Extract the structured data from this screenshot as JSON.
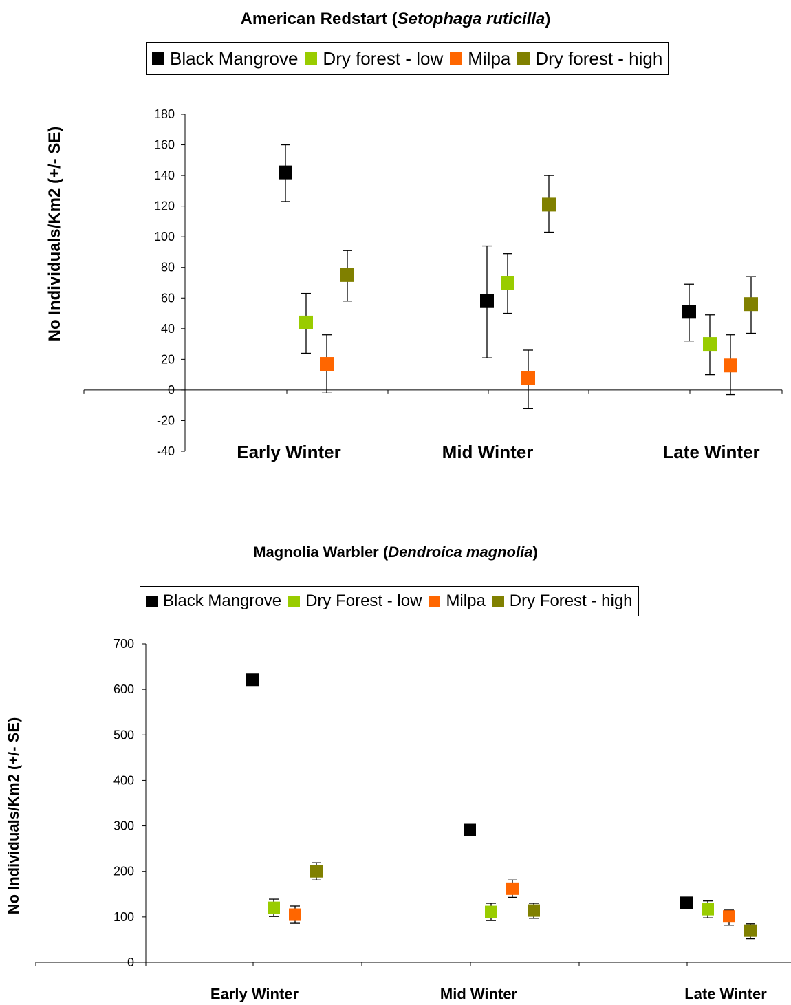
{
  "chart_data": [
    {
      "type": "scatter",
      "title_plain": "American Redstart (",
      "title_italic": "Setophaga ruticilla",
      "title_close": ")",
      "ylabel": "No Individuals/Km2 (+/- SE)",
      "categories": [
        "Early Winter",
        "Mid Winter",
        "Late Winter"
      ],
      "ylim": [
        -40,
        180
      ],
      "yticks": [
        -40,
        -20,
        0,
        20,
        40,
        60,
        80,
        100,
        120,
        140,
        160,
        180
      ],
      "legend_position": "top",
      "series": [
        {
          "name": "Black Mangrove",
          "color": "#000000",
          "values": [
            142,
            58,
            51
          ],
          "err_low": [
            123,
            21,
            32
          ],
          "err_high": [
            160,
            94,
            69
          ]
        },
        {
          "name": "Dry forest - low",
          "color": "#99cc00",
          "values": [
            44,
            70,
            30
          ],
          "err_low": [
            24,
            50,
            10
          ],
          "err_high": [
            63,
            89,
            49
          ]
        },
        {
          "name": "Milpa",
          "color": "#ff6600",
          "values": [
            17,
            8,
            16
          ],
          "err_low": [
            -2,
            -12,
            -3
          ],
          "err_high": [
            36,
            26,
            36
          ]
        },
        {
          "name": "Dry forest - high",
          "color": "#808000",
          "values": [
            75,
            121,
            56
          ],
          "err_low": [
            58,
            103,
            37
          ],
          "err_high": [
            91,
            140,
            74
          ]
        }
      ]
    },
    {
      "type": "scatter",
      "title_plain": "Magnolia Warbler (",
      "title_italic": "Dendroica magnolia",
      "title_close": ")",
      "ylabel": "No Individuals/Km2 (+/- SE)",
      "categories": [
        "Early Winter",
        "Mid Winter",
        "Late Winter"
      ],
      "ylim": [
        0,
        700
      ],
      "yticks": [
        0,
        100,
        200,
        300,
        400,
        500,
        600,
        700
      ],
      "legend_position": "top",
      "series": [
        {
          "name": "Black Mangrove",
          "color": "#000000",
          "values": [
            621,
            291,
            131
          ],
          "err_low": [
            null,
            null,
            null
          ],
          "err_high": [
            null,
            null,
            null
          ]
        },
        {
          "name": "Dry Forest - low",
          "color": "#99cc00",
          "values": [
            120,
            111,
            117
          ],
          "err_low": [
            101,
            92,
            98
          ],
          "err_high": [
            139,
            130,
            135
          ]
        },
        {
          "name": "Milpa",
          "color": "#ff6600",
          "values": [
            105,
            162,
            101
          ],
          "err_low": [
            86,
            143,
            82
          ],
          "err_high": [
            124,
            181,
            115
          ]
        },
        {
          "name": "Dry Forest - high",
          "color": "#808000",
          "values": [
            200,
            114,
            70
          ],
          "err_low": [
            181,
            97,
            52
          ],
          "err_high": [
            219,
            130,
            85
          ]
        }
      ]
    }
  ]
}
